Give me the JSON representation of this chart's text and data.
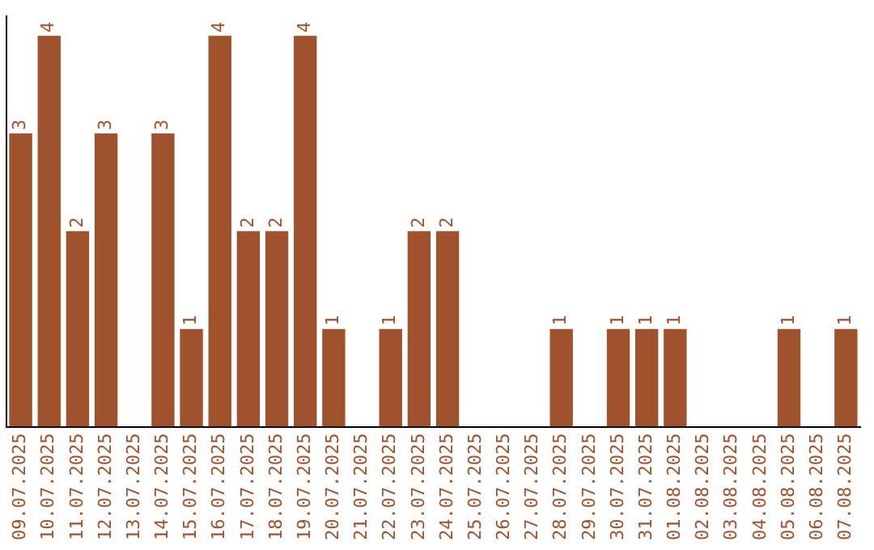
{
  "chart_data": {
    "type": "bar",
    "categories": [
      "09.07.2025",
      "10.07.2025",
      "11.07.2025",
      "12.07.2025",
      "13.07.2025",
      "14.07.2025",
      "15.07.2025",
      "16.07.2025",
      "17.07.2025",
      "18.07.2025",
      "19.07.2025",
      "20.07.2025",
      "21.07.2025",
      "22.07.2025",
      "23.07.2025",
      "24.07.2025",
      "25.07.2025",
      "26.07.2025",
      "27.07.2025",
      "28.07.2025",
      "29.07.2025",
      "30.07.2025",
      "31.07.2025",
      "01.08.2025",
      "02.08.2025",
      "03.08.2025",
      "04.08.2025",
      "05.08.2025",
      "06.08.2025",
      "07.08.2025"
    ],
    "values": [
      3,
      4,
      2,
      3,
      0,
      3,
      1,
      4,
      2,
      2,
      4,
      1,
      0,
      1,
      2,
      2,
      0,
      0,
      0,
      1,
      0,
      1,
      1,
      1,
      0,
      0,
      0,
      1,
      0,
      1
    ],
    "value_labels": [
      "3",
      "4",
      "2",
      "3",
      null,
      "3",
      "1",
      "4",
      "2",
      "2",
      "4",
      "1",
      null,
      "1",
      "2",
      "2",
      null,
      null,
      null,
      "1",
      null,
      "1",
      "1",
      "1",
      null,
      null,
      null,
      "1",
      null,
      "1"
    ],
    "color": "#a0522d",
    "ylim": [
      0,
      4.2
    ],
    "grid": false,
    "legend": false
  }
}
